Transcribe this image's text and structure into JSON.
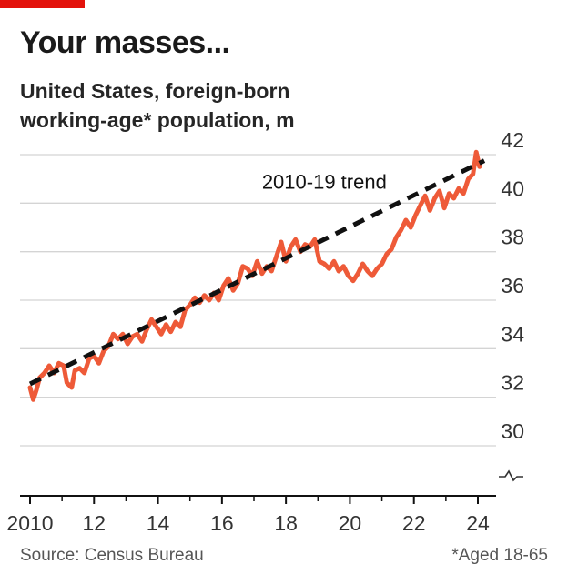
{
  "header": {
    "title": "Your masses...",
    "subtitle_line1": "United States, foreign-born",
    "subtitle_line2": "working-age* population, m"
  },
  "footer": {
    "source": "Source: Census Bureau",
    "note": "*Aged 18-65"
  },
  "colors": {
    "accent": "#e3120b",
    "series": "#ee5a38",
    "trend": "#111111",
    "grid": "#d4d4d4"
  },
  "chart_data": {
    "type": "line",
    "x_tick_values": [
      2010,
      2012,
      2014,
      2016,
      2018,
      2020,
      2022,
      2024
    ],
    "x_tick_labels": [
      "2010",
      "12",
      "14",
      "16",
      "18",
      "20",
      "22",
      "24"
    ],
    "y_ticks": [
      30,
      32,
      34,
      36,
      38,
      40,
      42
    ],
    "ylim": [
      29,
      42.6
    ],
    "xlim": [
      2009.9,
      2024.2
    ],
    "axis_break": true,
    "grid": true,
    "series": [
      {
        "x": [
          2010.0,
          2010.1,
          2010.2,
          2010.3,
          2010.45,
          2010.6,
          2010.75,
          2010.9,
          2011.05,
          2011.15,
          2011.3,
          2011.4,
          2011.55,
          2011.7,
          2011.85,
          2012.0,
          2012.15,
          2012.3,
          2012.45,
          2012.6,
          2012.75,
          2012.9,
          2013.05,
          2013.2,
          2013.35,
          2013.5,
          2013.65,
          2013.8,
          2013.95,
          2014.1,
          2014.25,
          2014.4,
          2014.55,
          2014.7,
          2014.85,
          2015.0,
          2015.15,
          2015.3,
          2015.45,
          2015.6,
          2015.75,
          2015.9,
          2016.05,
          2016.2,
          2016.35,
          2016.5,
          2016.65,
          2016.8,
          2016.95,
          2017.1,
          2017.25,
          2017.4,
          2017.55,
          2017.7,
          2017.85,
          2018.0,
          2018.15,
          2018.3,
          2018.45,
          2018.6,
          2018.75,
          2018.9,
          2019.05,
          2019.2,
          2019.35,
          2019.5,
          2019.65,
          2019.8,
          2019.95,
          2020.1,
          2020.25,
          2020.4,
          2020.55,
          2020.7,
          2020.85,
          2021.0,
          2021.15,
          2021.3,
          2021.45,
          2021.6,
          2021.75,
          2021.9,
          2022.05,
          2022.2,
          2022.35,
          2022.5,
          2022.65,
          2022.8,
          2022.95,
          2023.1,
          2023.25,
          2023.4,
          2023.55,
          2023.7,
          2023.85,
          2023.95,
          2024.05
        ],
        "values": [
          32.4,
          31.9,
          32.3,
          32.8,
          33.0,
          33.3,
          33.0,
          33.4,
          33.3,
          32.6,
          32.4,
          33.1,
          33.2,
          33.0,
          33.6,
          33.7,
          33.4,
          33.9,
          34.1,
          34.6,
          34.4,
          34.6,
          34.2,
          34.5,
          34.6,
          34.3,
          34.8,
          35.2,
          34.9,
          34.6,
          35.0,
          34.7,
          35.1,
          34.9,
          35.6,
          35.8,
          36.1,
          35.9,
          36.2,
          36.0,
          36.3,
          36.0,
          36.6,
          36.9,
          36.4,
          36.7,
          37.4,
          37.3,
          37.0,
          37.6,
          37.1,
          37.4,
          37.2,
          37.8,
          38.4,
          37.6,
          38.2,
          38.5,
          38.0,
          38.3,
          38.2,
          38.5,
          37.6,
          37.5,
          37.3,
          37.6,
          37.2,
          37.4,
          37.0,
          36.8,
          37.1,
          37.5,
          37.2,
          37.0,
          37.3,
          37.5,
          37.9,
          38.1,
          38.6,
          38.9,
          39.3,
          39.0,
          39.5,
          39.9,
          40.3,
          39.7,
          40.2,
          40.5,
          39.8,
          40.4,
          40.2,
          40.6,
          40.4,
          41.0,
          41.2,
          42.1,
          41.5
        ]
      },
      {
        "name": "2010-19 trend",
        "x": [
          2010.0,
          2024.2
        ],
        "values": [
          32.55,
          41.75
        ]
      }
    ],
    "annotations": [
      {
        "text": "2010-19 trend",
        "x": 2019.2,
        "y": 40.6
      }
    ]
  }
}
